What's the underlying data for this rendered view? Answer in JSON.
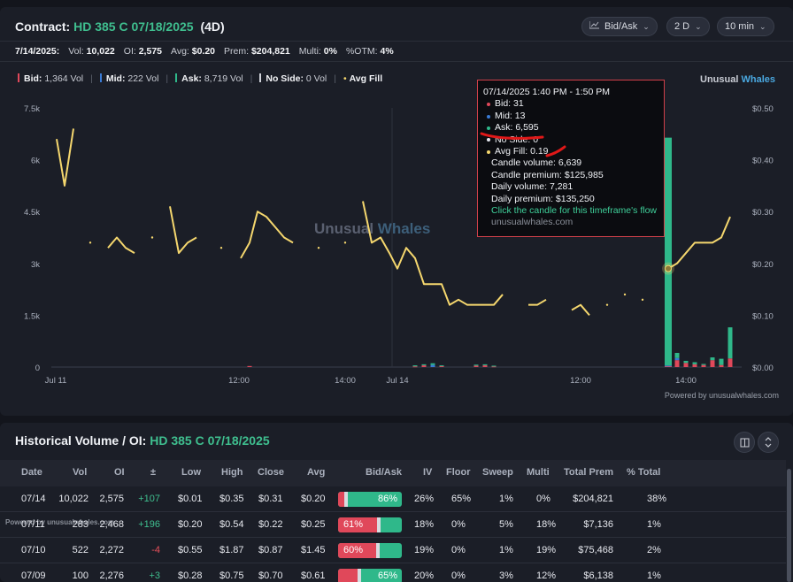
{
  "header": {
    "label": "Contract:",
    "contract": "HD 385 C 07/18/2025",
    "dte": "(4D)",
    "controls": [
      {
        "label": "Bid/Ask",
        "icon": "chart-icon"
      },
      {
        "label": "2 D"
      },
      {
        "label": "10 min"
      }
    ]
  },
  "stats": {
    "date": "7/14/2025:",
    "vol_label": "Vol:",
    "vol": "10,022",
    "oi_label": "OI:",
    "oi": "2,575",
    "avg_label": "Avg:",
    "avg": "$0.20",
    "prem_label": "Prem:",
    "prem": "$204,821",
    "multi_label": "Multi:",
    "multi": "0%",
    "otm_label": "%OTM:",
    "otm": "4%"
  },
  "legend": {
    "bid_label": "Bid:",
    "bid": "1,364 Vol",
    "mid_label": "Mid:",
    "mid": "222 Vol",
    "ask_label": "Ask:",
    "ask": "8,719 Vol",
    "noside_label": "No Side:",
    "noside": "0 Vol",
    "avgfill_label": "Avg Fill"
  },
  "brand": {
    "part1": "Unusual",
    "part2": "Whales"
  },
  "watermark": {
    "part1": "Unusual",
    "part2": "Whales"
  },
  "powered": "Powered by unusualwhales.com",
  "colors": {
    "bid": "#e0485a",
    "mid": "#3a7bd5",
    "ask": "#2fb88a",
    "avg": "#f5d76e",
    "accent": "#3fbf8f"
  },
  "chart_data": {
    "type": "line",
    "left_axis_ticks": [
      "7.5k",
      "6k",
      "4.5k",
      "3k",
      "1.5k",
      "0"
    ],
    "right_axis_ticks": [
      "$0.50",
      "$0.40",
      "$0.30",
      "$0.20",
      "$0.10",
      "$0.00"
    ],
    "x_ticks": [
      "Jul 11",
      "12:00",
      "14:00",
      "Jul 14",
      "12:00",
      "14:00"
    ],
    "ylim_volume": [
      0,
      7500
    ],
    "ylim_price": [
      0,
      0.5
    ],
    "avg_fill_segments": [
      [
        [
          64,
          0.44
        ],
        [
          73,
          0.35
        ],
        [
          83,
          0.46
        ]
      ],
      [
        [
          102,
          0.24
        ]
      ],
      [
        [
          122,
          0.23
        ],
        [
          132,
          0.25
        ],
        [
          142,
          0.23
        ],
        [
          152,
          0.22
        ]
      ],
      [
        [
          172,
          0.25
        ]
      ],
      [
        [
          192,
          0.31
        ],
        [
          202,
          0.22
        ],
        [
          212,
          0.24
        ],
        [
          222,
          0.25
        ]
      ],
      [
        [
          250,
          0.23
        ]
      ],
      [
        [
          272,
          0.21
        ],
        [
          282,
          0.24
        ],
        [
          291,
          0.3
        ],
        [
          301,
          0.29
        ],
        [
          311,
          0.27
        ],
        [
          321,
          0.25
        ],
        [
          331,
          0.24
        ]
      ],
      [
        [
          360,
          0.23
        ]
      ],
      [
        [
          390,
          0.24
        ]
      ],
      [
        [
          410,
          0.32
        ],
        [
          420,
          0.24
        ],
        [
          430,
          0.25
        ],
        [
          440,
          0.22
        ],
        [
          449,
          0.19
        ],
        [
          459,
          0.23
        ],
        [
          469,
          0.21
        ],
        [
          479,
          0.16
        ],
        [
          489,
          0.16
        ],
        [
          499,
          0.16
        ],
        [
          508,
          0.12
        ],
        [
          518,
          0.13
        ],
        [
          528,
          0.12
        ],
        [
          538,
          0.12
        ],
        [
          548,
          0.12
        ],
        [
          558,
          0.12
        ],
        [
          568,
          0.14
        ]
      ],
      [
        [
          597,
          0.12
        ],
        [
          607,
          0.12
        ],
        [
          617,
          0.13
        ]
      ],
      [
        [
          646,
          0.11
        ],
        [
          656,
          0.12
        ],
        [
          666,
          0.1
        ]
      ],
      [
        [
          686,
          0.12
        ]
      ],
      [
        [
          706,
          0.14
        ]
      ],
      [
        [
          726,
          0.13
        ]
      ],
      [
        [
          755,
          0.19
        ],
        [
          765,
          0.2
        ],
        [
          775,
          0.22
        ],
        [
          785,
          0.24
        ],
        [
          795,
          0.24
        ],
        [
          805,
          0.24
        ],
        [
          815,
          0.25
        ],
        [
          825,
          0.29
        ]
      ]
    ],
    "volume_bars": [
      {
        "x": 282,
        "bid": 30,
        "mid": 0,
        "ask": 0
      },
      {
        "x": 469,
        "bid": 20,
        "mid": 0,
        "ask": 30
      },
      {
        "x": 479,
        "bid": 50,
        "mid": 0,
        "ask": 30
      },
      {
        "x": 489,
        "bid": 0,
        "mid": 60,
        "ask": 50
      },
      {
        "x": 499,
        "bid": 30,
        "mid": 0,
        "ask": 20
      },
      {
        "x": 538,
        "bid": 40,
        "mid": 0,
        "ask": 30
      },
      {
        "x": 548,
        "bid": 50,
        "mid": 0,
        "ask": 30
      },
      {
        "x": 558,
        "bid": 20,
        "mid": 0,
        "ask": 20
      },
      {
        "x": 755,
        "bid": 31,
        "mid": 13,
        "ask": 6595
      },
      {
        "x": 765,
        "bid": 200,
        "mid": 60,
        "ask": 150
      },
      {
        "x": 775,
        "bid": 120,
        "mid": 0,
        "ask": 60
      },
      {
        "x": 785,
        "bid": 80,
        "mid": 0,
        "ask": 60
      },
      {
        "x": 795,
        "bid": 60,
        "mid": 0,
        "ask": 30
      },
      {
        "x": 805,
        "bid": 200,
        "mid": 0,
        "ask": 80
      },
      {
        "x": 815,
        "bid": 60,
        "mid": 0,
        "ask": 180
      },
      {
        "x": 825,
        "bid": 250,
        "mid": 0,
        "ask": 900
      }
    ],
    "highlight": {
      "x": 755,
      "price": 0.19
    }
  },
  "tooltip": {
    "time": "07/14/2025 1:40 PM - 1:50 PM",
    "bid": "Bid: 31",
    "mid": "Mid: 13",
    "ask": "Ask: 6,595",
    "noside": "No Side: 0",
    "avgfill": "Avg Fill: 0.19",
    "candle_volume": "Candle volume: 6,639",
    "candle_premium": "Candle premium: $125,985",
    "daily_volume": "Daily volume: 7,281",
    "daily_premium": "Daily premium: $135,250",
    "link": "Click the candle for this timeframe's flow",
    "site": "unusualwhales.com"
  },
  "history": {
    "title": "Historical Volume / OI:",
    "contract": "HD 385 C 07/18/2025",
    "powered": "Powered by unusualwhales.com",
    "columns": [
      "Date",
      "Vol",
      "OI",
      "±",
      "Low",
      "High",
      "Close",
      "Avg",
      "Bid/Ask",
      "IV",
      "Floor",
      "Sweep",
      "Multi",
      "Total Prem",
      "% Total"
    ],
    "rows": [
      {
        "date": "07/14",
        "vol": "10,022",
        "oi": "2,575",
        "chg": "+107",
        "low": "$0.01",
        "high": "$0.35",
        "close": "$0.31",
        "avg": "$0.20",
        "bid_pct": 10,
        "ba_label": "86%",
        "ba_side": "ask",
        "iv": "26%",
        "floor": "65%",
        "sweep": "1%",
        "multi": "0%",
        "prem": "$204,821",
        "pct": "38%"
      },
      {
        "date": "07/11",
        "vol": "283",
        "oi": "2,468",
        "chg": "+196",
        "low": "$0.20",
        "high": "$0.54",
        "close": "$0.22",
        "avg": "$0.25",
        "bid_pct": 61,
        "ba_label": "61%",
        "ba_side": "bid",
        "iv": "18%",
        "floor": "0%",
        "sweep": "5%",
        "multi": "18%",
        "prem": "$7,136",
        "pct": "1%"
      },
      {
        "date": "07/10",
        "vol": "522",
        "oi": "2,272",
        "chg": "-4",
        "low": "$0.55",
        "high": "$1.87",
        "close": "$0.87",
        "avg": "$1.45",
        "bid_pct": 60,
        "ba_label": "60%",
        "ba_side": "bid",
        "iv": "19%",
        "floor": "0%",
        "sweep": "1%",
        "multi": "19%",
        "prem": "$75,468",
        "pct": "2%"
      },
      {
        "date": "07/09",
        "vol": "100",
        "oi": "2,276",
        "chg": "+3",
        "low": "$0.28",
        "high": "$0.75",
        "close": "$0.70",
        "avg": "$0.61",
        "bid_pct": 30,
        "ba_label": "65%",
        "ba_side": "ask",
        "iv": "20%",
        "floor": "0%",
        "sweep": "3%",
        "multi": "12%",
        "prem": "$6,138",
        "pct": "1%"
      }
    ]
  }
}
